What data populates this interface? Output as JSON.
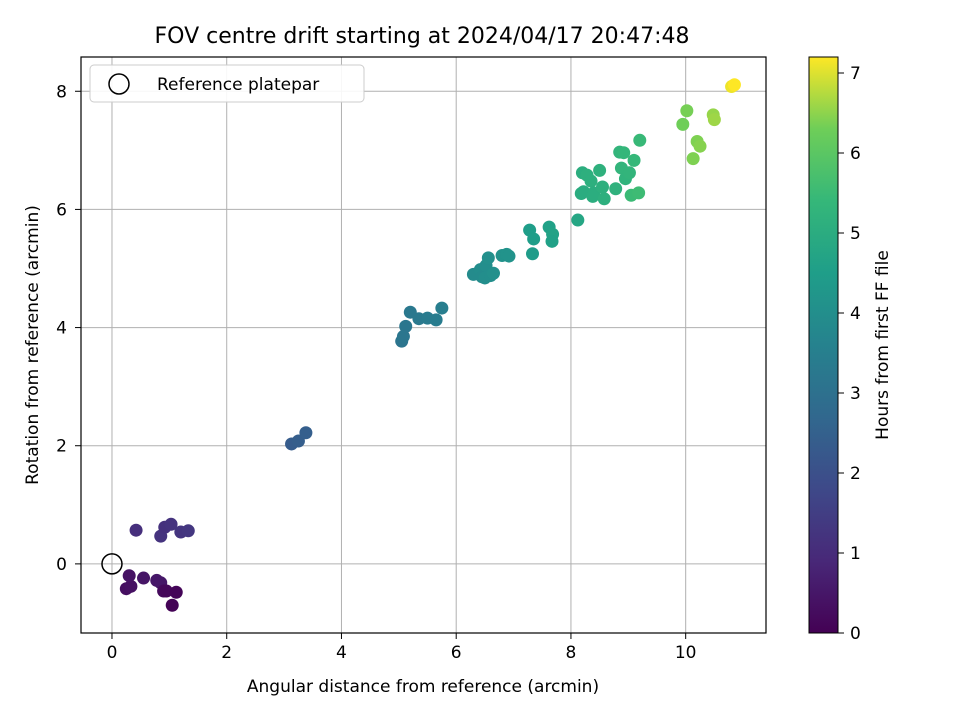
{
  "chart_data": {
    "type": "scatter",
    "title": "FOV centre drift starting at 2024/04/17 20:47:48",
    "xlabel": "Angular distance from reference (arcmin)",
    "ylabel": "Rotation from reference (arcmin)",
    "xlim": [
      -0.54,
      11.4
    ],
    "ylim": [
      -1.17,
      8.58
    ],
    "xticks": [
      0,
      2,
      4,
      6,
      8,
      10
    ],
    "yticks": [
      0,
      2,
      4,
      6,
      8
    ],
    "grid": true,
    "legend": {
      "placement": "top-left",
      "entries": [
        "Reference platepar"
      ]
    },
    "reference_point": {
      "label": "Reference platepar",
      "x": 0,
      "y": 0
    },
    "colorbar": {
      "label": "Hours from first FF file",
      "range": [
        0,
        7.2
      ],
      "ticks": [
        0,
        1,
        2,
        3,
        4,
        5,
        6,
        7
      ],
      "colormap": "viridis"
    },
    "points": [
      {
        "x": 0.25,
        "y": -0.42,
        "h": 0.3
      },
      {
        "x": 0.33,
        "y": -0.38,
        "h": 0.35
      },
      {
        "x": 0.3,
        "y": -0.2,
        "h": 0.4
      },
      {
        "x": 0.55,
        "y": -0.24,
        "h": 0.45
      },
      {
        "x": 0.78,
        "y": -0.28,
        "h": 0.5
      },
      {
        "x": 0.85,
        "y": -0.32,
        "h": 0.5
      },
      {
        "x": 0.9,
        "y": -0.46,
        "h": 0.2
      },
      {
        "x": 0.95,
        "y": -0.46,
        "h": 0.15
      },
      {
        "x": 1.12,
        "y": -0.48,
        "h": 0.1
      },
      {
        "x": 1.05,
        "y": -0.7,
        "h": 0.05
      },
      {
        "x": 0.42,
        "y": 0.57,
        "h": 1.1
      },
      {
        "x": 0.85,
        "y": 0.47,
        "h": 1.2
      },
      {
        "x": 0.92,
        "y": 0.62,
        "h": 1.15
      },
      {
        "x": 1.03,
        "y": 0.67,
        "h": 1.2
      },
      {
        "x": 1.2,
        "y": 0.54,
        "h": 1.25
      },
      {
        "x": 1.33,
        "y": 0.56,
        "h": 1.3
      },
      {
        "x": 3.13,
        "y": 2.03,
        "h": 2.35
      },
      {
        "x": 3.25,
        "y": 2.08,
        "h": 2.4
      },
      {
        "x": 3.38,
        "y": 2.22,
        "h": 2.45
      },
      {
        "x": 5.05,
        "y": 3.77,
        "h": 3.15
      },
      {
        "x": 5.08,
        "y": 3.85,
        "h": 3.2
      },
      {
        "x": 5.12,
        "y": 4.02,
        "h": 3.2
      },
      {
        "x": 5.2,
        "y": 4.26,
        "h": 3.25
      },
      {
        "x": 5.35,
        "y": 4.15,
        "h": 3.3
      },
      {
        "x": 5.5,
        "y": 4.16,
        "h": 3.35
      },
      {
        "x": 5.65,
        "y": 4.13,
        "h": 3.4
      },
      {
        "x": 5.75,
        "y": 4.33,
        "h": 3.45
      },
      {
        "x": 6.3,
        "y": 4.9,
        "h": 3.9
      },
      {
        "x": 6.42,
        "y": 4.98,
        "h": 3.95
      },
      {
        "x": 6.45,
        "y": 4.86,
        "h": 3.9
      },
      {
        "x": 6.5,
        "y": 4.84,
        "h": 4.0
      },
      {
        "x": 6.52,
        "y": 5.05,
        "h": 4.0
      },
      {
        "x": 6.56,
        "y": 5.18,
        "h": 4.05
      },
      {
        "x": 6.6,
        "y": 4.88,
        "h": 4.0
      },
      {
        "x": 6.65,
        "y": 4.92,
        "h": 4.05
      },
      {
        "x": 6.8,
        "y": 5.22,
        "h": 4.1
      },
      {
        "x": 6.88,
        "y": 5.24,
        "h": 4.15
      },
      {
        "x": 6.92,
        "y": 5.21,
        "h": 4.15
      },
      {
        "x": 7.28,
        "y": 5.65,
        "h": 4.5
      },
      {
        "x": 7.35,
        "y": 5.5,
        "h": 4.5
      },
      {
        "x": 7.33,
        "y": 5.25,
        "h": 4.45
      },
      {
        "x": 7.62,
        "y": 5.7,
        "h": 4.6
      },
      {
        "x": 7.68,
        "y": 5.58,
        "h": 4.65
      },
      {
        "x": 7.67,
        "y": 5.46,
        "h": 4.6
      },
      {
        "x": 8.12,
        "y": 5.82,
        "h": 4.8
      },
      {
        "x": 8.18,
        "y": 6.27,
        "h": 5.0
      },
      {
        "x": 8.22,
        "y": 6.3,
        "h": 5.0
      },
      {
        "x": 8.2,
        "y": 6.62,
        "h": 5.05
      },
      {
        "x": 8.28,
        "y": 6.58,
        "h": 5.1
      },
      {
        "x": 8.35,
        "y": 6.48,
        "h": 5.1
      },
      {
        "x": 8.4,
        "y": 6.28,
        "h": 5.05
      },
      {
        "x": 8.38,
        "y": 6.22,
        "h": 5.05
      },
      {
        "x": 8.5,
        "y": 6.66,
        "h": 5.15
      },
      {
        "x": 8.55,
        "y": 6.38,
        "h": 5.1
      },
      {
        "x": 8.58,
        "y": 6.18,
        "h": 5.1
      },
      {
        "x": 8.78,
        "y": 6.35,
        "h": 5.2
      },
      {
        "x": 8.85,
        "y": 6.97,
        "h": 5.3
      },
      {
        "x": 8.92,
        "y": 6.96,
        "h": 5.35
      },
      {
        "x": 8.88,
        "y": 6.7,
        "h": 5.3
      },
      {
        "x": 8.95,
        "y": 6.52,
        "h": 5.25
      },
      {
        "x": 9.02,
        "y": 6.62,
        "h": 5.3
      },
      {
        "x": 9.1,
        "y": 6.83,
        "h": 5.4
      },
      {
        "x": 9.2,
        "y": 7.17,
        "h": 5.45
      },
      {
        "x": 9.05,
        "y": 6.24,
        "h": 5.5
      },
      {
        "x": 9.18,
        "y": 6.28,
        "h": 5.55
      },
      {
        "x": 9.95,
        "y": 7.44,
        "h": 6.3
      },
      {
        "x": 10.02,
        "y": 7.67,
        "h": 6.35
      },
      {
        "x": 10.13,
        "y": 6.86,
        "h": 6.4
      },
      {
        "x": 10.2,
        "y": 7.15,
        "h": 6.4
      },
      {
        "x": 10.25,
        "y": 7.07,
        "h": 6.45
      },
      {
        "x": 10.48,
        "y": 7.6,
        "h": 6.55
      },
      {
        "x": 10.5,
        "y": 7.52,
        "h": 6.6
      },
      {
        "x": 10.8,
        "y": 8.08,
        "h": 7.1
      },
      {
        "x": 10.85,
        "y": 8.11,
        "h": 7.2
      }
    ]
  }
}
